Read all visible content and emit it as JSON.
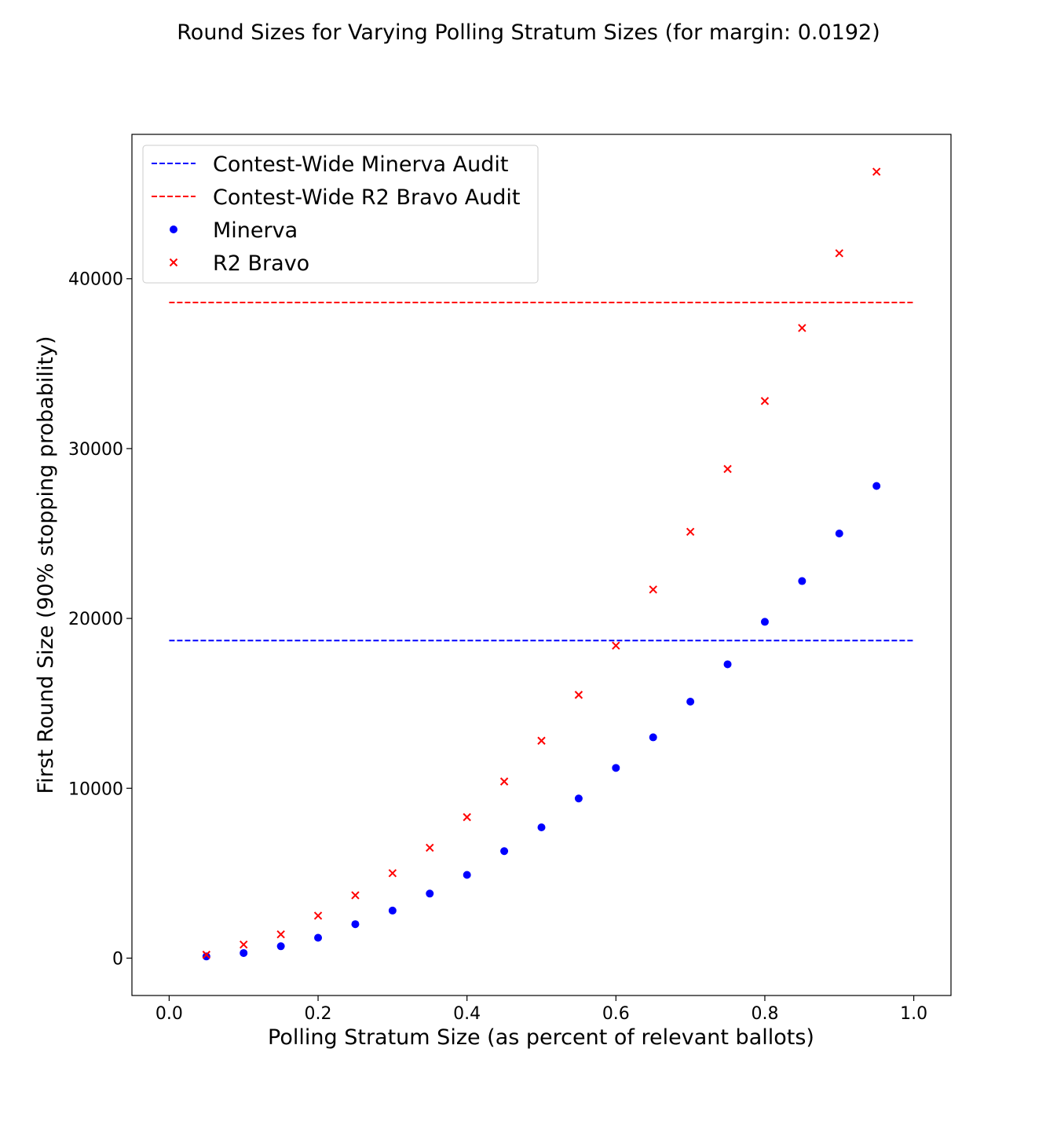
{
  "chart_data": {
    "type": "scatter",
    "title": "Round Sizes for Varying Polling Stratum Sizes (for margin: 0.0192)",
    "xlabel": "Polling Stratum Size (as percent of relevant ballots)",
    "ylabel": "First Round Size (90% stopping probability)",
    "xlim": [
      -0.05,
      1.05
    ],
    "ylim": [
      -2200,
      48500
    ],
    "x_ticks": [
      0.0,
      0.2,
      0.4,
      0.6,
      0.8,
      1.0
    ],
    "x_tick_labels": [
      "0.0",
      "0.2",
      "0.4",
      "0.6",
      "0.8",
      "1.0"
    ],
    "y_ticks": [
      0,
      10000,
      20000,
      30000,
      40000
    ],
    "y_tick_labels": [
      "0",
      "10000",
      "20000",
      "30000",
      "40000"
    ],
    "grid": false,
    "legend_position": "top-left",
    "reference_lines": [
      {
        "name": "Contest-Wide Minerva Audit",
        "y": 18700,
        "x_range": [
          0.0,
          1.0
        ],
        "color": "#0000ff",
        "style": "dashed"
      },
      {
        "name": "Contest-Wide R2 Bravo Audit",
        "y": 38600,
        "x_range": [
          0.0,
          1.0
        ],
        "color": "#ff0000",
        "style": "dashed"
      }
    ],
    "x": [
      0.05,
      0.1,
      0.15,
      0.2,
      0.25,
      0.3,
      0.35,
      0.4,
      0.45,
      0.5,
      0.55,
      0.6,
      0.65,
      0.7,
      0.75,
      0.8,
      0.85,
      0.9,
      0.95
    ],
    "series": [
      {
        "name": "Minerva",
        "marker": "circle",
        "color": "#0000ff",
        "values": [
          100,
          300,
          700,
          1200,
          2000,
          2800,
          3800,
          4900,
          6300,
          7700,
          9400,
          11200,
          13000,
          15100,
          17300,
          19800,
          22200,
          25000,
          27800
        ]
      },
      {
        "name": "R2 Bravo",
        "marker": "x",
        "color": "#ff0000",
        "values": [
          200,
          800,
          1400,
          2500,
          3700,
          5000,
          6500,
          8300,
          10400,
          12800,
          15500,
          18400,
          21700,
          25100,
          28800,
          32800,
          37100,
          41500,
          46300
        ]
      }
    ]
  }
}
